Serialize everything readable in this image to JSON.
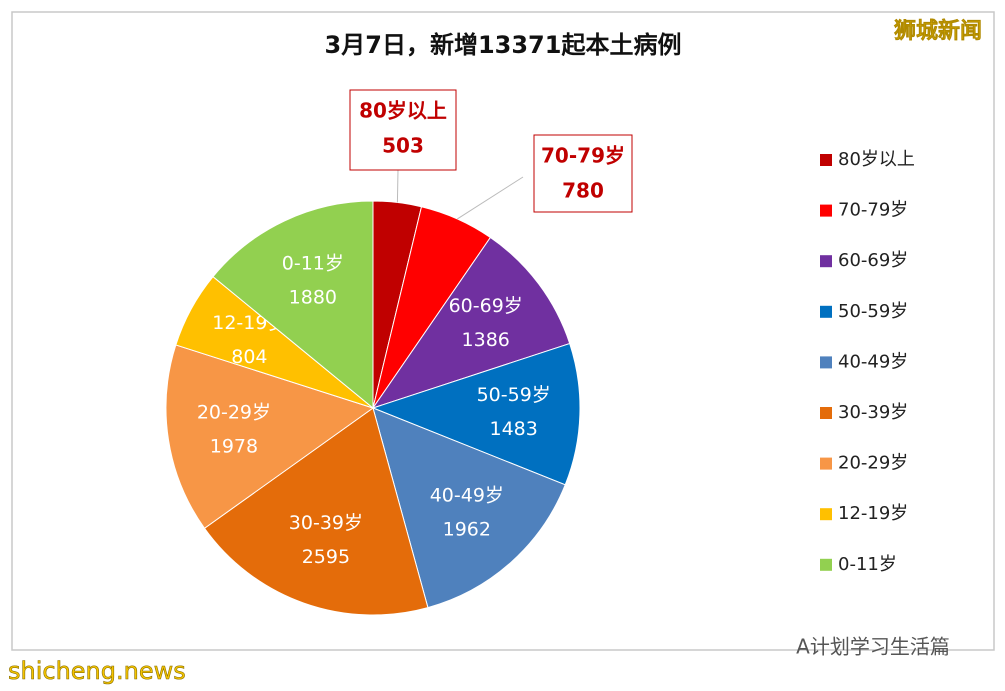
{
  "chart_data": {
    "type": "pie",
    "title": "3月7日，新增13371起本土病例",
    "categories": [
      "80岁以上",
      "70-79岁",
      "60-69岁",
      "50-59岁",
      "40-49岁",
      "30-39岁",
      "20-29岁",
      "12-19岁",
      "0-11岁"
    ],
    "values": [
      503,
      780,
      1386,
      1483,
      1962,
      2595,
      1978,
      804,
      1880
    ],
    "colors": [
      "#c00000",
      "#ff0000",
      "#7030a0",
      "#0070c0",
      "#4f81bd",
      "#e46c0a",
      "#f79646",
      "#ffc000",
      "#92d050"
    ],
    "legend": "right",
    "annotations": [
      "狮城新闻",
      "shicheng.news",
      "A计划学习生活篇"
    ]
  }
}
